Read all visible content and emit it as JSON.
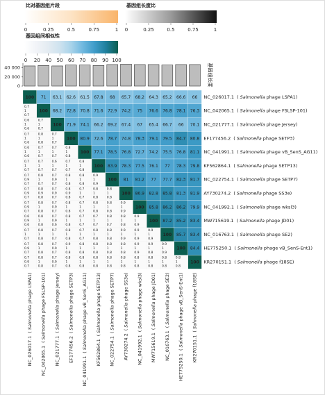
{
  "chart_data": {
    "type": "heatmap",
    "legends": [
      {
        "title": "比对基因组片段",
        "colors": [
          "#ffffff",
          "#fde3c4",
          "#f9b46a"
        ],
        "ticks": [
          0,
          0.25,
          0.5,
          0.75,
          1
        ]
      },
      {
        "title": "基因组长度比",
        "colors": [
          "#ffffff",
          "#9a9a9a",
          "#111111"
        ],
        "ticks": [
          0,
          0.25,
          0.5,
          0.75,
          1
        ]
      },
      {
        "title": "基因组间相似性",
        "colors": [
          "#ffffff",
          "#f2f4f8",
          "#e4ecf2",
          "#cfe3ef",
          "#a8d3ea",
          "#6fb8df",
          "#3f9cc9",
          "#1e7f9c",
          "#0b5e4f"
        ],
        "ticks": [
          0,
          20,
          40,
          50,
          60,
          70,
          80,
          90,
          100
        ]
      }
    ],
    "length_axis_label": "基因组长度",
    "ylim": [
      0,
      50000
    ],
    "yticks": [
      0,
      {
        "value": 20000,
        "label": "20 000"
      },
      {
        "value": 40000,
        "label": "40 000"
      }
    ],
    "bar_color": "#bdbdbd",
    "bracket": [
      "(",
      ")"
    ],
    "genomes": [
      {
        "accession": "NC_026017.1",
        "genus": "Salmonella",
        "phage": "phage LSPA1",
        "short": "NC_026017.1"
      },
      {
        "accession": "NC_042065.1",
        "genus": "Salmonella",
        "phage": "phage FSLSP-101",
        "short": "NC_042065.1"
      },
      {
        "accession": "NC_021777.1",
        "genus": "Salmonella",
        "phage": "phage Jersey",
        "short": "NC_021777.1"
      },
      {
        "accession": "EF177456.2",
        "genus": "Salmonella",
        "phage": "phage SETP3",
        "short": "EF177456.2"
      },
      {
        "accession": "NC_041991.1",
        "genus": "Salmonella",
        "phage": "phage vB_SenS_AG11",
        "short": "NC_041991.1"
      },
      {
        "accession": "KF562864.1",
        "genus": "Salmonella",
        "phage": "phage SETP13",
        "short": "KF562864.1"
      },
      {
        "accession": "NC_022754.1",
        "genus": "Salmonella",
        "phage": "phage SETP7",
        "short": "NC_022754.1"
      },
      {
        "accession": "AY730274.2",
        "genus": "Salmonella",
        "phage": "phage SS3e",
        "short": "AY730274.2"
      },
      {
        "accession": "NC_041992.1",
        "genus": "Salmonella",
        "phage": "phage wksl3",
        "short": "NC_041992.1"
      },
      {
        "accession": "MW715619.1",
        "genus": "Salmonella",
        "phage": "phage JD01",
        "short": "MW715619.1"
      },
      {
        "accession": "NC_016763.1",
        "genus": "Salmonella",
        "phage": "phage SE2",
        "short": "NC_016763.1"
      },
      {
        "accession": "HE775250.1",
        "genus": "Salmonella",
        "phage": "phage vB_SenS-Ent1",
        "short": "HE775250.1"
      },
      {
        "accession": "KR270151.1",
        "genus": "Salmonella",
        "phage": "phage f18SE",
        "short": "KR270151.1"
      }
    ],
    "lengths": [
      44000,
      45000,
      44000,
      46000,
      46000,
      45000,
      47000,
      48000,
      47000,
      47000,
      46000,
      47000,
      47000
    ],
    "similarity": [
      [
        100.0,
        71.0,
        63.1,
        62.6,
        61.5,
        67.8,
        68.0,
        65.7,
        68.2,
        64.3,
        65.2,
        66.6,
        66.0
      ],
      [
        100.0,
        68.2,
        72.8,
        70.8,
        71.6,
        72.9,
        74.2,
        75.0,
        76.6,
        76.8,
        78.1,
        76.3
      ],
      [
        100.0,
        71.9,
        74.1,
        66.2,
        69.2,
        67.4,
        67.0,
        65.4,
        66.7,
        66.0,
        70.1
      ],
      [
        100.0,
        80.9,
        72.6,
        78.7,
        74.8,
        78.3,
        79.1,
        79.5,
        84.7,
        80.8
      ],
      [
        100.0,
        77.1,
        78.5,
        76.8,
        72.7,
        74.2,
        75.5,
        76.8,
        81.1
      ],
      [
        100.0,
        83.9,
        78.3,
        77.5,
        76.1,
        77.0,
        78.3,
        79.8
      ],
      [
        100.0,
        81.0,
        81.2,
        77.0,
        77.7,
        82.3,
        81.7
      ],
      [
        100.0,
        86.9,
        82.8,
        85.8,
        81.3,
        81.9
      ],
      [
        100.0,
        85.8,
        86.2,
        86.2,
        79.9
      ],
      [
        100.0,
        87.2,
        85.2,
        83.4
      ],
      [
        100.0,
        85.7,
        83.4
      ],
      [
        100.0,
        84.4
      ],
      [
        100.0
      ]
    ],
    "lower": [
      [],
      [
        [
          0.7,
          1.0,
          0.7
        ]
      ],
      [
        [
          0.6,
          1.0,
          0.6
        ],
        [
          0.7,
          1.0,
          0.7
        ]
      ],
      [
        [
          0.7,
          1.0,
          0.6
        ],
        [
          0.8,
          1.0,
          0.8
        ],
        [
          0.7,
          1.0,
          0.7
        ]
      ],
      [
        [
          0.6,
          1.0,
          0.6
        ],
        [
          0.7,
          1.0,
          0.7
        ],
        [
          0.7,
          1.0,
          0.7
        ],
        [
          0.8,
          1.0,
          0.8
        ]
      ],
      [
        [
          0.7,
          1.0,
          0.7
        ],
        [
          0.7,
          1.0,
          0.7
        ],
        [
          0.6,
          1.0,
          0.7
        ],
        [
          0.7,
          1.0,
          0.7
        ],
        [
          0.8,
          1.0,
          0.8
        ]
      ],
      [
        [
          0.7,
          0.9,
          0.7
        ],
        [
          0.8,
          1.0,
          0.7
        ],
        [
          0.7,
          0.9,
          0.7
        ],
        [
          0.8,
          1.0,
          0.8
        ],
        [
          0.8,
          1.0,
          0.8
        ],
        [
          0.9,
          1.0,
          0.9
        ]
      ],
      [
        [
          0.7,
          0.9,
          0.7
        ],
        [
          0.8,
          0.9,
          0.8
        ],
        [
          0.7,
          0.9,
          0.7
        ],
        [
          0.8,
          0.9,
          0.8
        ],
        [
          0.7,
          1.0,
          0.7
        ],
        [
          0.8,
          1.0,
          0.8
        ],
        [
          0.8,
          1.0,
          0.8
        ]
      ],
      [
        [
          0.7,
          0.9,
          0.7
        ],
        [
          0.8,
          1.0,
          0.8
        ],
        [
          0.7,
          0.9,
          0.7
        ],
        [
          0.8,
          1.0,
          0.8
        ],
        [
          0.7,
          1.0,
          0.7
        ],
        [
          0.8,
          1.0,
          0.8
        ],
        [
          0.8,
          1.0,
          0.8
        ],
        [
          0.9,
          1.0,
          0.9
        ]
      ],
      [
        [
          0.6,
          0.9,
          0.6
        ],
        [
          0.8,
          1.0,
          0.8
        ],
        [
          0.7,
          0.9,
          0.6
        ],
        [
          0.8,
          1.0,
          0.8
        ],
        [
          0.7,
          1.0,
          0.7
        ],
        [
          0.7,
          1.0,
          0.7
        ],
        [
          0.8,
          1.0,
          0.7
        ],
        [
          0.8,
          1.0,
          0.8
        ],
        [
          0.9,
          1.0,
          0.9
        ]
      ],
      [
        [
          0.7,
          1.0,
          0.7
        ],
        [
          0.8,
          1.0,
          0.8
        ],
        [
          0.7,
          1.0,
          0.7
        ],
        [
          0.8,
          1.0,
          0.8
        ],
        [
          0.7,
          1.0,
          0.7
        ],
        [
          0.8,
          1.0,
          0.8
        ],
        [
          0.8,
          1.0,
          0.8
        ],
        [
          0.9,
          1.0,
          0.9
        ],
        [
          0.9,
          1.0,
          0.9
        ],
        [
          0.9,
          1.0,
          0.9
        ]
      ],
      [
        [
          0.7,
          0.9,
          0.7
        ],
        [
          0.8,
          1.0,
          0.8
        ],
        [
          0.7,
          0.9,
          0.7
        ],
        [
          0.9,
          1.0,
          0.8
        ],
        [
          0.8,
          1.0,
          0.8
        ],
        [
          0.8,
          1.0,
          0.8
        ],
        [
          0.8,
          1.0,
          0.8
        ],
        [
          0.8,
          1.0,
          0.8
        ],
        [
          0.9,
          1.0,
          0.9
        ],
        [
          0.9,
          1.0,
          0.8
        ],
        [
          0.9,
          1.0,
          0.9
        ]
      ],
      [
        [
          0.7,
          0.9,
          0.7
        ],
        [
          0.8,
          1.0,
          0.8
        ],
        [
          0.7,
          0.9,
          0.7
        ],
        [
          0.8,
          1.0,
          0.8
        ],
        [
          0.8,
          1.0,
          0.8
        ],
        [
          0.8,
          1.0,
          0.8
        ],
        [
          0.8,
          1.0,
          0.8
        ],
        [
          0.8,
          1.0,
          0.8
        ],
        [
          0.8,
          1.0,
          0.8
        ],
        [
          0.8,
          1.0,
          0.8
        ],
        [
          0.8,
          1.0,
          0.8
        ],
        [
          0.8,
          1.0,
          0.8
        ]
      ]
    ]
  }
}
